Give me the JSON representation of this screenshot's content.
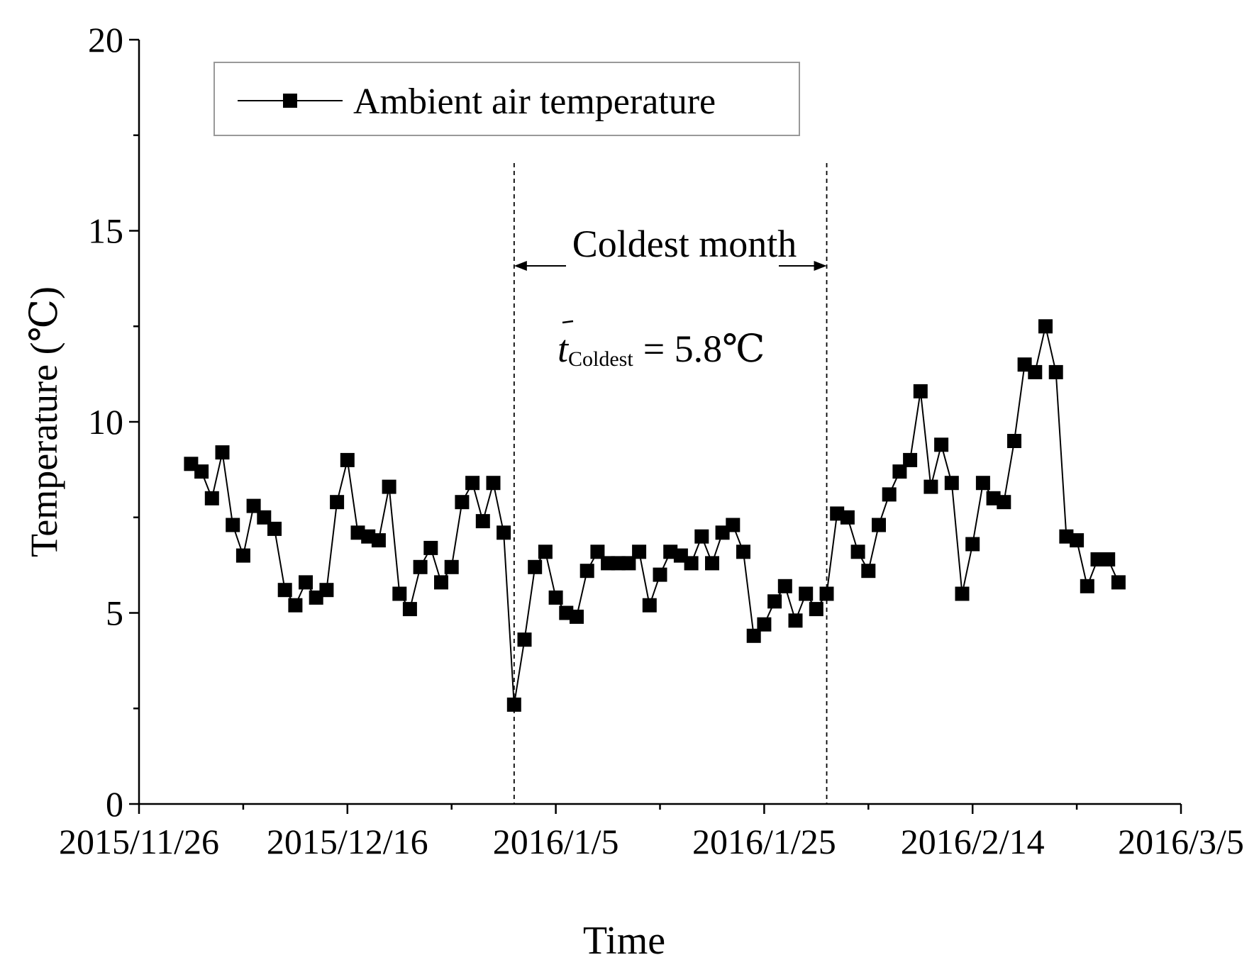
{
  "chart_data": {
    "type": "line",
    "title": "",
    "xlabel": "Time",
    "ylabel": "Temperature (℃)",
    "x_start": "2015/11/26",
    "xlim_days": [
      0,
      100
    ],
    "ylim": [
      0,
      20
    ],
    "y_ticks": [
      0,
      5,
      10,
      15,
      20
    ],
    "x_tick_labels": [
      "2015/11/26",
      "2015/12/16",
      "2016/1/5",
      "2016/1/25",
      "2016/2/14",
      "2016/3/5"
    ],
    "x_tick_days": [
      0,
      20,
      40,
      60,
      80,
      100
    ],
    "grid": false,
    "legend_position": "top-left",
    "series": [
      {
        "name": "Ambient air temperature",
        "marker": "square",
        "color": "#000000",
        "x_days": [
          5,
          6,
          7,
          8,
          9,
          10,
          11,
          12,
          13,
          14,
          15,
          16,
          17,
          18,
          19,
          20,
          21,
          22,
          23,
          24,
          25,
          26,
          27,
          28,
          29,
          30,
          31,
          32,
          33,
          34,
          35,
          36,
          37,
          38,
          39,
          40,
          41,
          42,
          43,
          44,
          45,
          46,
          47,
          48,
          49,
          50,
          51,
          52,
          53,
          54,
          55,
          56,
          57,
          58,
          59,
          60,
          61,
          62,
          63,
          64,
          65,
          66,
          67,
          68,
          69,
          70,
          71,
          72,
          73,
          74,
          75,
          76,
          77,
          78,
          79,
          80,
          81,
          82,
          83,
          84,
          85,
          86,
          87,
          88,
          89,
          90,
          91,
          92,
          93,
          94
        ],
        "values": [
          8.9,
          8.7,
          8.0,
          9.2,
          7.3,
          6.5,
          7.8,
          7.5,
          7.2,
          5.6,
          5.2,
          5.8,
          5.4,
          5.6,
          7.9,
          9.0,
          7.1,
          7.0,
          6.9,
          8.3,
          5.5,
          5.1,
          6.2,
          6.7,
          5.8,
          6.2,
          7.9,
          8.4,
          7.4,
          8.4,
          7.1,
          2.6,
          4.3,
          6.2,
          6.6,
          5.4,
          5.0,
          4.9,
          6.1,
          6.6,
          6.3,
          6.3,
          6.3,
          6.6,
          5.2,
          6.0,
          6.6,
          6.5,
          6.3,
          7.0,
          6.3,
          7.1,
          7.3,
          6.6,
          4.4,
          4.7,
          5.3,
          5.7,
          4.8,
          5.5,
          5.1,
          5.5,
          7.6,
          7.5,
          6.6,
          6.1,
          7.3,
          8.1,
          8.7,
          9.0,
          10.8,
          8.3,
          9.4,
          8.4,
          5.5,
          6.8,
          8.4,
          8.0,
          7.9,
          9.5,
          11.5,
          11.3,
          12.5,
          11.3,
          7.0,
          6.9,
          5.7,
          6.4,
          6.4,
          5.8
        ]
      }
    ],
    "annotations": {
      "coldest_month_label": "Coldest month",
      "coldest_month_start_day": 36,
      "coldest_month_end_day": 66,
      "mean_symbol": "t",
      "mean_subscript": "Coldest",
      "mean_value": "= 5.8",
      "mean_unit": "℃"
    }
  }
}
